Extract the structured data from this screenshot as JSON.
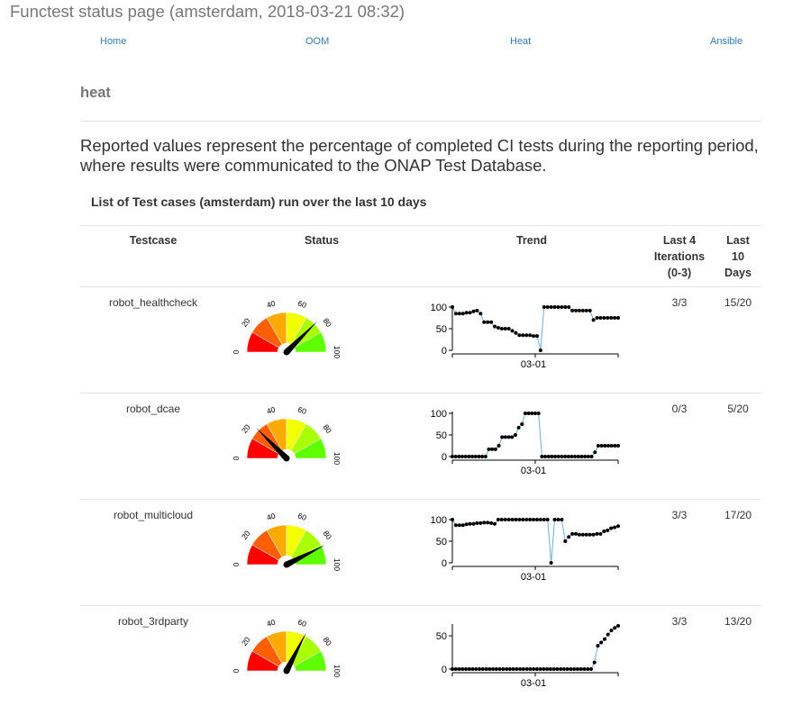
{
  "page_title": "Functest status page (amsterdam, 2018-03-21 08:32)",
  "nav": [
    {
      "label": "Home"
    },
    {
      "label": "OOM"
    },
    {
      "label": "Heat"
    },
    {
      "label": "Ansible"
    }
  ],
  "section_title": "heat",
  "intro_text": "Reported values represent the percentage of completed CI tests during the reporting period, where results were communicated to the ONAP Test Database.",
  "list_title": "List of Test cases (amsterdam) run over the last 10 days",
  "table_headers": {
    "testcase": "Testcase",
    "status": "Status",
    "trend": "Trend",
    "last4_line1": "Last 4",
    "last4_line2": "Iterations",
    "last4_line3": "(0-3)",
    "last10_line1": "Last",
    "last10_line2": "10",
    "last10_line3": "Days"
  },
  "gauge_scale_labels": [
    "0",
    "20",
    "40",
    "60",
    "80",
    "100"
  ],
  "gauge_colors": [
    "#ff0000",
    "#ff5f00",
    "#ffaa00",
    "#f2ff00",
    "#aaff00",
    "#5fff00"
  ],
  "trend_x_tick": "03-01",
  "rows": [
    {
      "testcase": "robot_healthcheck",
      "status_value": 75,
      "last4": "3/3",
      "last10": "15/20",
      "y_ticks": [
        "100",
        "50",
        "0"
      ],
      "y_max": 100,
      "trend": [
        100,
        85,
        85,
        85,
        87,
        87,
        90,
        92,
        85,
        65,
        65,
        65,
        55,
        52,
        50,
        50,
        50,
        45,
        40,
        35,
        35,
        35,
        35,
        33,
        33,
        0,
        100,
        100,
        100,
        100,
        100,
        100,
        100,
        100,
        92,
        92,
        92,
        92,
        92,
        92,
        70,
        75,
        75,
        75,
        75,
        75,
        75,
        75
      ]
    },
    {
      "testcase": "robot_dcae",
      "status_value": 25,
      "last4": "0/3",
      "last10": "5/20",
      "y_ticks": [
        "100",
        "50",
        "0"
      ],
      "y_max": 100,
      "trend": [
        0,
        0,
        0,
        0,
        0,
        0,
        0,
        0,
        0,
        0,
        0,
        17,
        17,
        17,
        25,
        45,
        45,
        45,
        45,
        50,
        67,
        75,
        100,
        100,
        100,
        100,
        100,
        0,
        0,
        0,
        0,
        0,
        0,
        0,
        0,
        0,
        0,
        0,
        0,
        0,
        0,
        0,
        0,
        10,
        25,
        25,
        25,
        25,
        25,
        25,
        25
      ]
    },
    {
      "testcase": "robot_multicloud",
      "status_value": 85,
      "last4": "3/3",
      "last10": "17/20",
      "y_ticks": [
        "100",
        "50",
        "0"
      ],
      "y_max": 100,
      "trend": [
        100,
        87,
        87,
        87,
        89,
        90,
        90,
        92,
        92,
        93,
        93,
        92,
        90,
        100,
        100,
        100,
        100,
        100,
        100,
        100,
        100,
        100,
        100,
        100,
        100,
        100,
        100,
        100,
        0,
        100,
        100,
        100,
        50,
        60,
        67,
        67,
        65,
        65,
        65,
        65,
        65,
        67,
        67,
        73,
        75,
        80,
        82,
        85
      ]
    },
    {
      "testcase": "robot_3rdparty",
      "status_value": 65,
      "last4": "3/3",
      "last10": "13/20",
      "y_ticks": [
        "50",
        "0"
      ],
      "y_max": 65,
      "trend": [
        0,
        0,
        0,
        0,
        0,
        0,
        0,
        0,
        0,
        0,
        0,
        0,
        0,
        0,
        0,
        0,
        0,
        0,
        0,
        0,
        0,
        0,
        0,
        0,
        0,
        0,
        0,
        0,
        0,
        0,
        0,
        0,
        0,
        0,
        0,
        0,
        0,
        0,
        0,
        0,
        0,
        0,
        10,
        35,
        40,
        45,
        52,
        58,
        62,
        65
      ]
    }
  ]
}
